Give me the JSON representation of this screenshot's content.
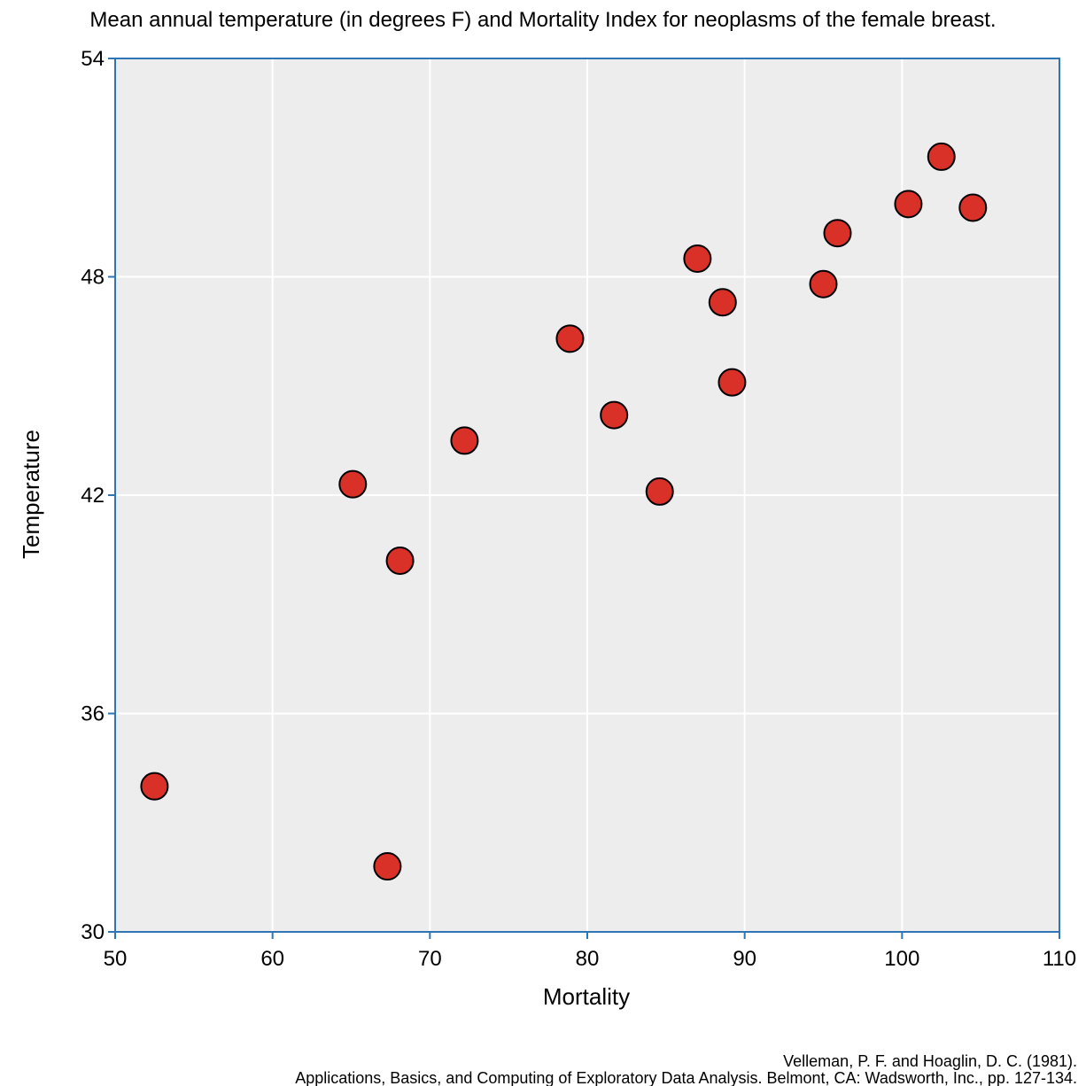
{
  "chart_data": {
    "type": "scatter",
    "title": "Mean annual temperature (in degrees F) and Mortality Index for neoplasms of the female breast.",
    "xlabel": "Mortality",
    "ylabel": "Temperature",
    "xlim": [
      50,
      110
    ],
    "ylim": [
      30,
      54
    ],
    "xticks": [
      "50",
      "60",
      "70",
      "80",
      "90",
      "100",
      "110"
    ],
    "yticks": [
      "30",
      "36",
      "42",
      "48",
      "54"
    ],
    "grid": true,
    "points": [
      {
        "x": 102.5,
        "y": 51.3
      },
      {
        "x": 104.5,
        "y": 49.9
      },
      {
        "x": 100.4,
        "y": 50.0
      },
      {
        "x": 95.9,
        "y": 49.2
      },
      {
        "x": 87.0,
        "y": 48.5
      },
      {
        "x": 95.0,
        "y": 47.8
      },
      {
        "x": 88.6,
        "y": 47.3
      },
      {
        "x": 89.2,
        "y": 45.1
      },
      {
        "x": 78.9,
        "y": 46.3
      },
      {
        "x": 84.6,
        "y": 42.1
      },
      {
        "x": 81.7,
        "y": 44.2
      },
      {
        "x": 72.2,
        "y": 43.5
      },
      {
        "x": 65.1,
        "y": 42.3
      },
      {
        "x": 68.1,
        "y": 40.2
      },
      {
        "x": 67.3,
        "y": 31.8
      },
      {
        "x": 52.5,
        "y": 34.0
      }
    ],
    "colors": {
      "point_fill": "#d93127",
      "point_stroke": "#000000",
      "plot_background": "#eeedee",
      "grid": "#ffffff",
      "axis": "#2f75b5"
    },
    "source_lines": [
      "Velleman, P. F. and Hoaglin, D. C. (1981).",
      "Applications, Basics, and Computing of Exploratory Data Analysis. Belmont, CA: Wadsworth, Inc., pp. 127-134."
    ]
  }
}
